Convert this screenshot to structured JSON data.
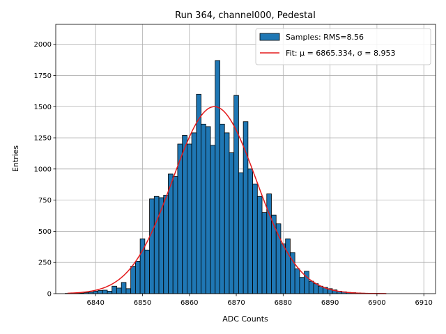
{
  "chart_data": {
    "type": "bar",
    "title": "Run 364, channel000, Pedestal",
    "xlabel": "ADC Counts",
    "ylabel": "Entries",
    "xlim": [
      6831.5,
      6912.5
    ],
    "ylim": [
      0,
      2160
    ],
    "xticks": [
      6840,
      6850,
      6860,
      6870,
      6880,
      6890,
      6900,
      6910
    ],
    "yticks": [
      0,
      250,
      500,
      750,
      1000,
      1250,
      1500,
      1750,
      2000
    ],
    "grid": true,
    "legend_position": "top-right",
    "histogram": {
      "name": "Samples: RMS=8.56",
      "color": "#1f77b4",
      "bin_width": 1,
      "x": [
        6834,
        6835,
        6836,
        6837,
        6838,
        6839,
        6840,
        6841,
        6842,
        6843,
        6844,
        6845,
        6846,
        6847,
        6848,
        6849,
        6850,
        6851,
        6852,
        6853,
        6854,
        6855,
        6856,
        6857,
        6858,
        6859,
        6860,
        6861,
        6862,
        6863,
        6864,
        6865,
        6866,
        6867,
        6868,
        6869,
        6870,
        6871,
        6872,
        6873,
        6874,
        6875,
        6876,
        6877,
        6878,
        6879,
        6880,
        6881,
        6882,
        6883,
        6884,
        6885,
        6886,
        6887,
        6888,
        6889,
        6890,
        6891,
        6892,
        6893,
        6894,
        6895,
        6896,
        6897,
        6898,
        6899,
        6900,
        6901
      ],
      "values": [
        2,
        2,
        3,
        5,
        8,
        12,
        20,
        25,
        28,
        20,
        60,
        45,
        90,
        40,
        220,
        260,
        440,
        350,
        760,
        780,
        770,
        790,
        960,
        940,
        1200,
        1270,
        1200,
        1290,
        1600,
        1360,
        1340,
        1190,
        1870,
        1360,
        1290,
        1130,
        1590,
        970,
        1380,
        1000,
        880,
        780,
        650,
        800,
        630,
        560,
        400,
        440,
        330,
        200,
        130,
        180,
        100,
        80,
        60,
        50,
        40,
        30,
        20,
        15,
        10,
        8,
        6,
        4,
        3,
        2,
        2,
        1
      ]
    },
    "fit": {
      "name": "Fit: μ = 6865.334, σ = 8.953",
      "color": "#e41a1c",
      "mu": 6865.334,
      "sigma": 8.953,
      "amplitude": 1500,
      "x_range": [
        6834,
        6902
      ]
    }
  }
}
